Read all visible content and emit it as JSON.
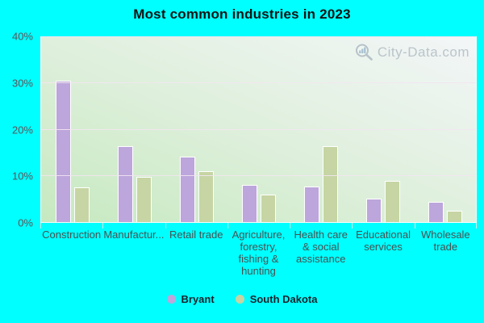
{
  "title": "Most common industries in 2023",
  "watermark": {
    "text": "City-Data.com",
    "icon": "magnifier-bar-chart-icon"
  },
  "colors": {
    "background": "#00ffff",
    "bryant": "#bca6db",
    "south_dakota": "#c6d5a3",
    "bar_border": "#ffffff",
    "plot_gradient_bottom_left": "#c6e9c0",
    "plot_gradient_top_right": "#f3f6f8",
    "gridline": "#f3e5f1",
    "axis_label": "#47504f",
    "watermark_text": "#aeb8c0"
  },
  "y_axis": {
    "tick_labels": [
      "0%",
      "10%",
      "20%",
      "30%",
      "40%"
    ],
    "max": 40,
    "step": 10,
    "unit": "%"
  },
  "chart_data": {
    "type": "bar",
    "title": "Most common industries in 2023",
    "categories": [
      "Construction",
      "Manufactur...",
      "Retail trade",
      "Agriculture, forestry, fishing & hunting",
      "Health care & social assistance",
      "Educational services",
      "Wholesale trade"
    ],
    "series": [
      {
        "name": "Bryant",
        "color": "#bca6db",
        "values": [
          30.5,
          16.5,
          14.2,
          8.0,
          7.7,
          5.0,
          4.3
        ]
      },
      {
        "name": "South Dakota",
        "color": "#c6d5a3",
        "values": [
          7.5,
          9.8,
          11.0,
          6.0,
          16.4,
          8.9,
          2.4
        ]
      }
    ],
    "ylabel": "",
    "xlabel": "",
    "ylim": [
      0,
      40
    ],
    "ytick_step": 10,
    "grid": true,
    "legend_position": "bottom"
  },
  "legend": {
    "items": [
      {
        "label": "Bryant",
        "color": "#bca6db"
      },
      {
        "label": "South Dakota",
        "color": "#c6d5a3"
      }
    ]
  }
}
